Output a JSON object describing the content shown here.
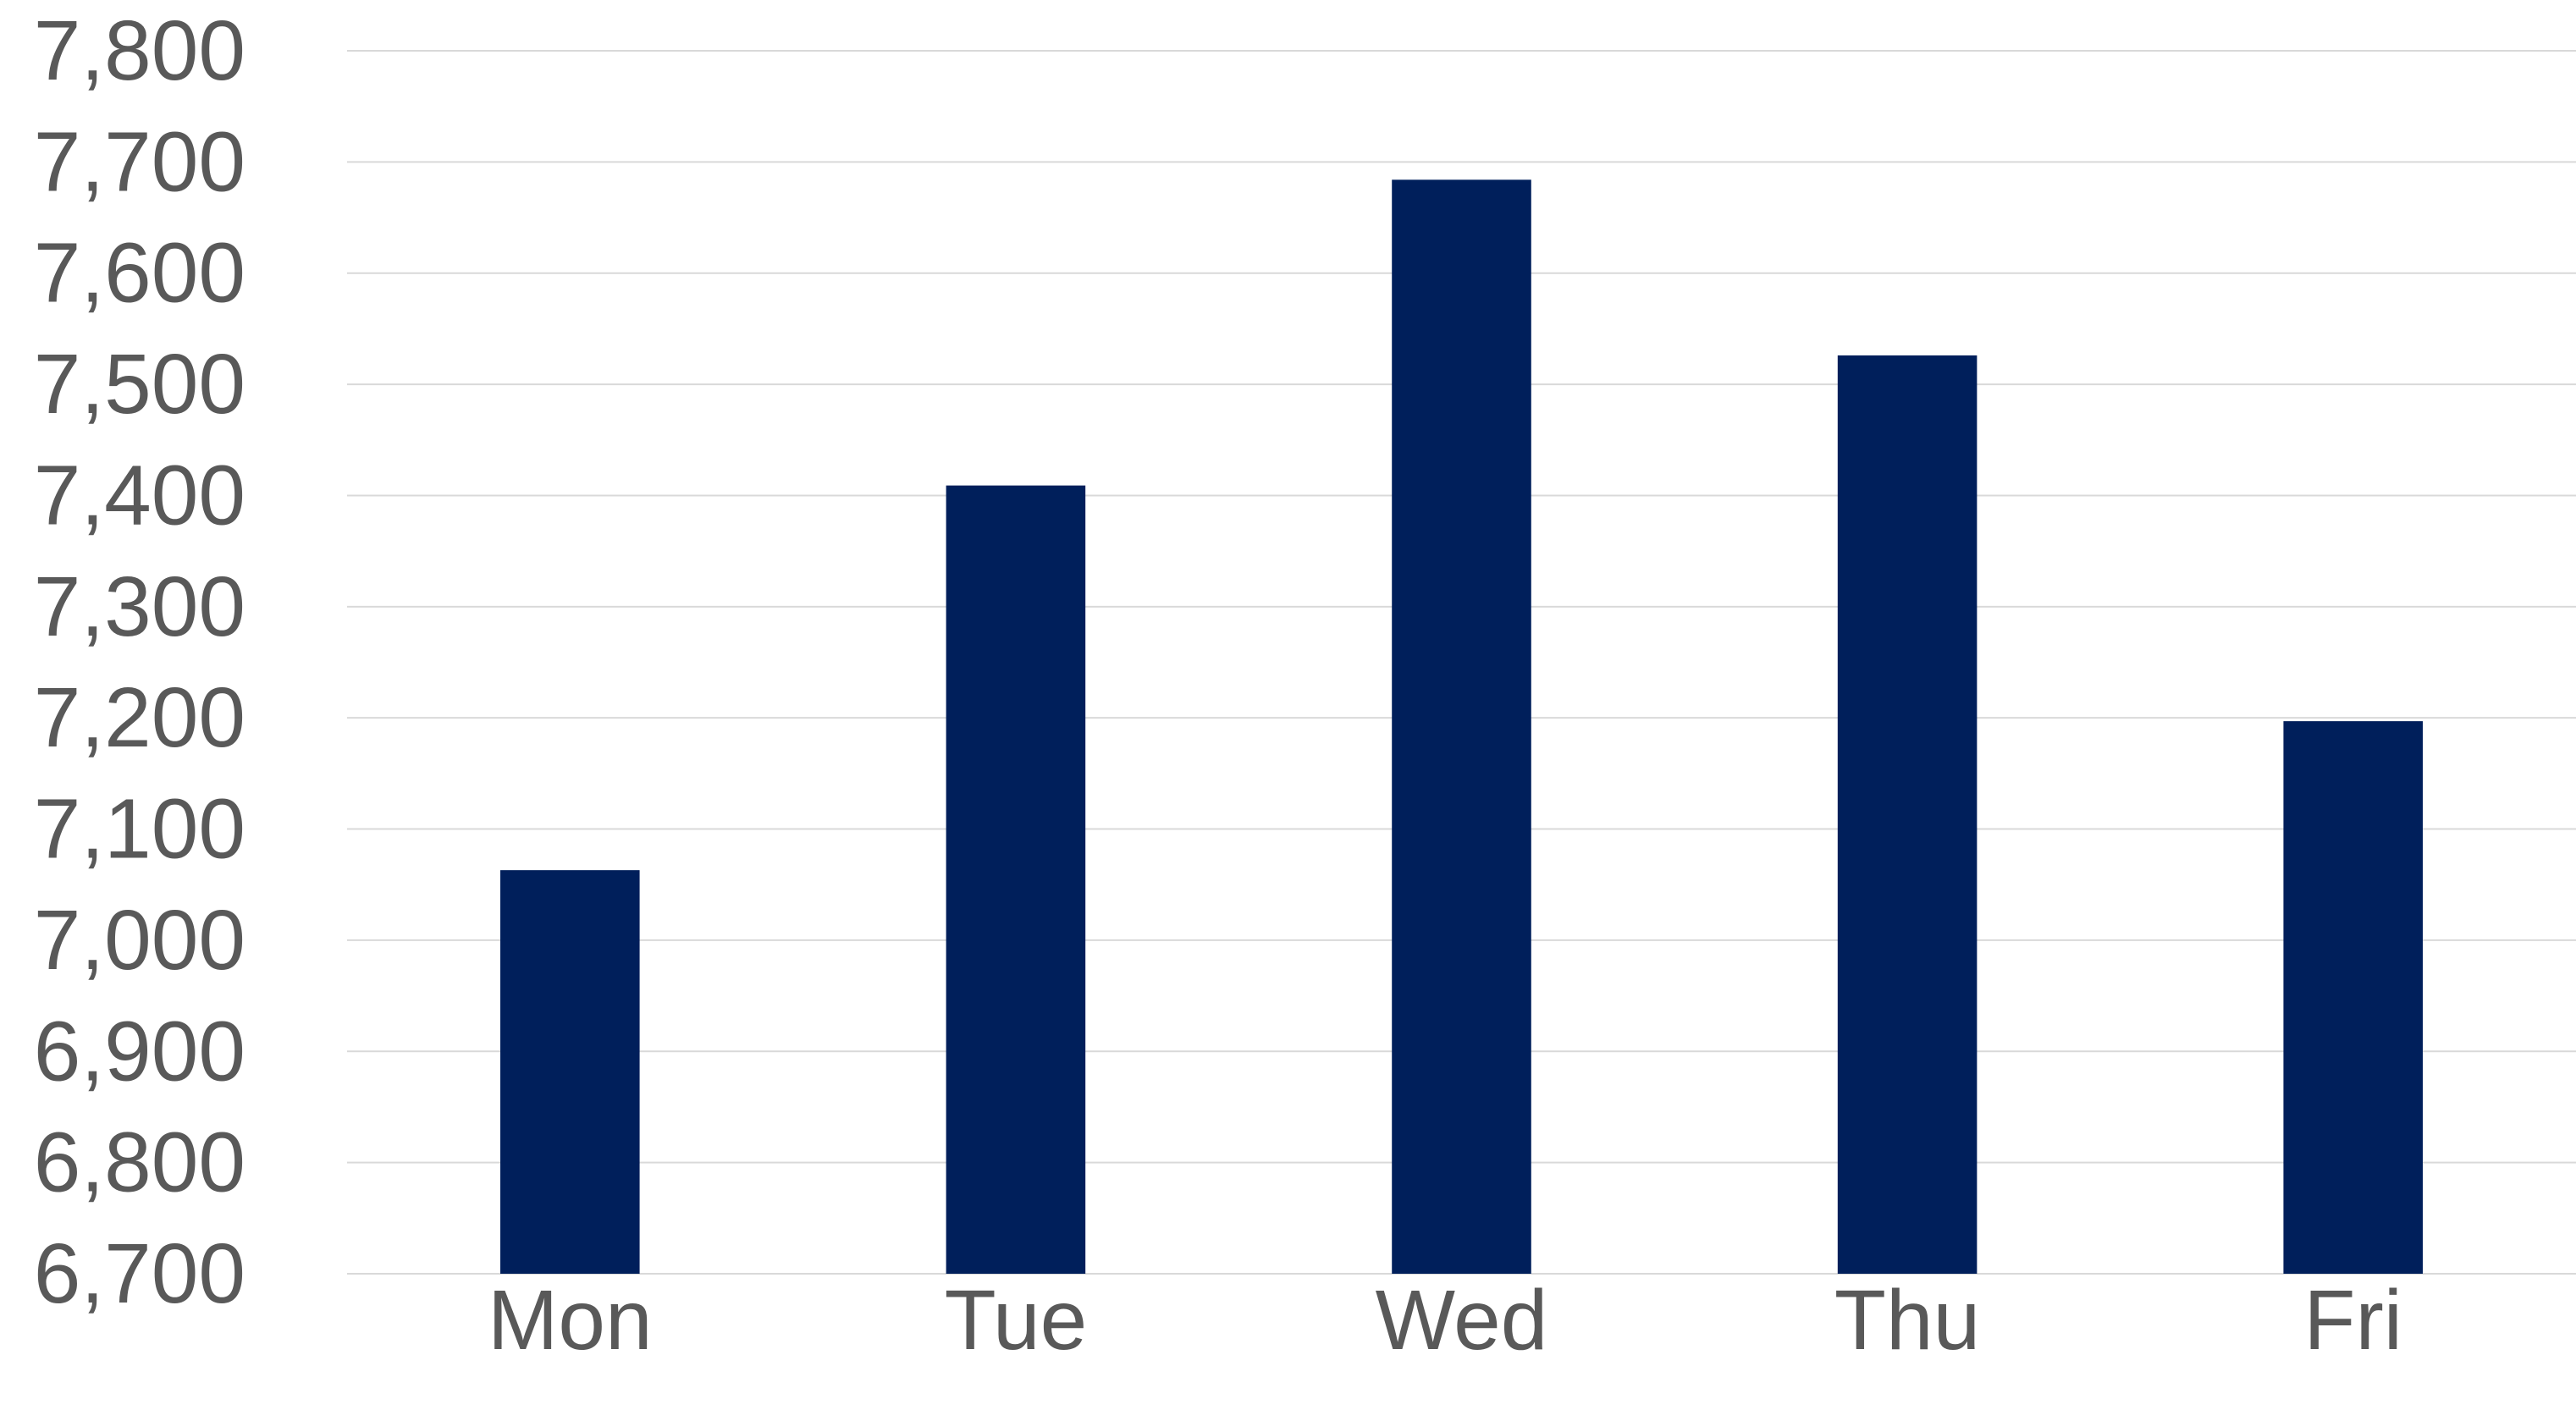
{
  "chart_data": {
    "type": "bar",
    "title": "",
    "xlabel": "",
    "ylabel": "",
    "categories": [
      "Mon",
      "Tue",
      "Wed",
      "Thu",
      "Fri"
    ],
    "series": [
      {
        "values": [
          7063,
          7409,
          7684,
          7526,
          7197
        ]
      }
    ],
    "ylim": [
      6700,
      7800
    ],
    "yticks": [
      6700,
      6800,
      6900,
      7000,
      7100,
      7200,
      7300,
      7400,
      7500,
      7600,
      7700,
      7800
    ],
    "ytick_labels": [
      "6,700",
      "6,800",
      "6,900",
      "7,000",
      "7,100",
      "7,200",
      "7,300",
      "7,400",
      "7,500",
      "7,600",
      "7,700",
      "7,800"
    ],
    "grid": true,
    "legend": "none",
    "colors": {
      "bar": "#001f5b",
      "grid": "#d9d9d9",
      "text": "#595959"
    }
  }
}
